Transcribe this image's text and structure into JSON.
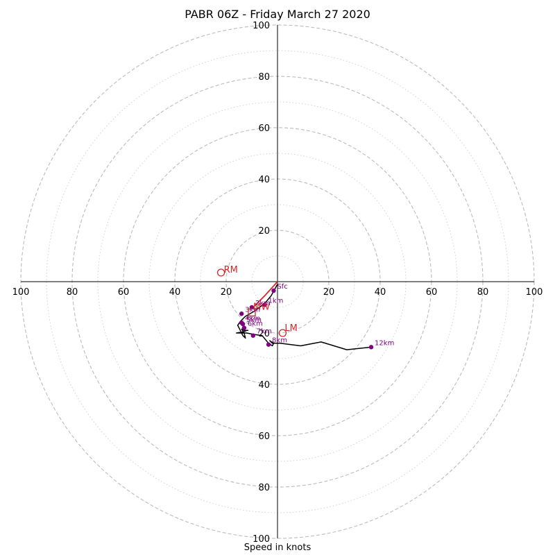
{
  "chart_data": {
    "type": "hodograph",
    "title": "PABR 06Z - Friday March 27 2020",
    "xlabel": "Speed in knots",
    "ylabel": "",
    "range_knots": 100,
    "major_rings": [
      20,
      40,
      60,
      80,
      100
    ],
    "minor_rings": [
      10,
      30,
      50,
      70,
      90
    ],
    "x_tick_labels": [
      "100",
      "80",
      "60",
      "40",
      "20",
      "20",
      "40",
      "60",
      "80",
      "100"
    ],
    "y_tick_labels": [
      "100",
      "80",
      "60",
      "40",
      "20",
      "20",
      "40",
      "60",
      "80",
      "100"
    ],
    "grid": true,
    "colors": {
      "ring": "#bbbbbb",
      "axis": "#000000",
      "trace": "#000000",
      "points": "#800080",
      "motion": "#d62728"
    },
    "wind_trace": [
      [
        0,
        -1
      ],
      [
        -2.5,
        -5.5
      ],
      [
        -5,
        -8.5
      ],
      [
        -9,
        -11.5
      ],
      [
        -12.5,
        -13.5
      ],
      [
        -14.5,
        -15.5
      ],
      [
        -15.5,
        -17
      ],
      [
        -14.5,
        -19
      ],
      [
        -13.5,
        -21
      ],
      [
        -12.5,
        -22
      ],
      [
        -13,
        -20
      ],
      [
        -14,
        -18.5
      ],
      [
        -13,
        -19
      ],
      [
        -11.5,
        -19
      ],
      [
        -12,
        -19
      ],
      [
        -13,
        -19.5
      ],
      [
        -16,
        -20
      ],
      [
        -12,
        -20
      ],
      [
        -9.5,
        -20.5
      ],
      [
        -6,
        -21
      ],
      [
        -3.5,
        -24
      ],
      [
        -2,
        -25
      ],
      [
        -1.5,
        -24
      ],
      [
        -3,
        -23
      ],
      [
        -2,
        -24
      ],
      [
        1,
        -24
      ],
      [
        9,
        -25
      ],
      [
        17,
        -23.5
      ],
      [
        27,
        -26.5
      ],
      [
        36.5,
        -25.5
      ]
    ],
    "height_points": [
      {
        "label": "Sfc",
        "u": -1.5,
        "v": -3.5
      },
      {
        "label": "1km",
        "u": -5,
        "v": -9
      },
      {
        "label": "2km",
        "u": -10,
        "v": -10
      },
      {
        "label": "3km",
        "u": -14,
        "v": -12.5
      },
      {
        "label": "4km",
        "u": -14,
        "v": -16
      },
      {
        "label": "5km",
        "u": -13.5,
        "v": -16.5
      },
      {
        "label": "6km",
        "u": -13,
        "v": -18
      },
      {
        "label": "7km",
        "u": -9.5,
        "v": -21
      },
      {
        "label": "8km",
        "u": -3.5,
        "v": -24.5
      },
      {
        "label": "12km",
        "u": 36.5,
        "v": -25.5
      }
    ],
    "storm_motion": {
      "RM": {
        "label": "RM",
        "u": -22,
        "v": 3
      },
      "LM": {
        "label": "LM",
        "u": 2,
        "v": -20
      },
      "MW": {
        "label": "MW",
        "u": -10,
        "v": -12
      },
      "shear_vector": [
        [
          0,
          0
        ],
        [
          -5,
          -5.5
        ],
        [
          -9,
          -9.5
        ]
      ]
    }
  }
}
